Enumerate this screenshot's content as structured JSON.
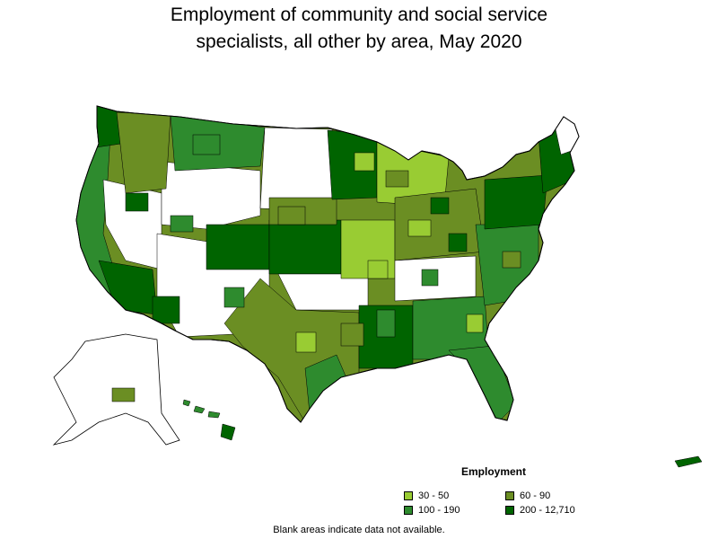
{
  "title": {
    "line1": "Employment of community and social service",
    "line2": "specialists, all other by area, May 2020"
  },
  "legend": {
    "title": "Employment",
    "items": [
      {
        "label": "30 - 50",
        "color": "#99cc33"
      },
      {
        "label": "60 - 90",
        "color": "#6b8e23"
      },
      {
        "label": "100 - 190",
        "color": "#2e8b2e"
      },
      {
        "label": "200 - 12,710",
        "color": "#006400"
      }
    ]
  },
  "note": "Blank areas indicate data not available.",
  "colors": {
    "no_data": "#ffffff",
    "boundary": "#000000"
  }
}
